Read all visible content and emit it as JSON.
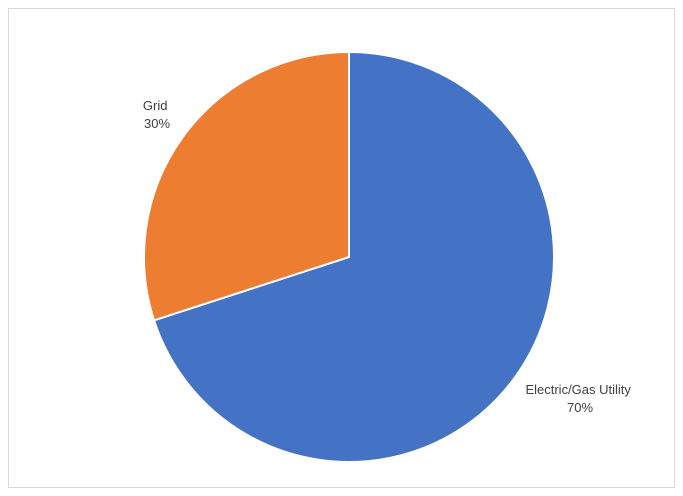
{
  "chart_data": {
    "type": "pie",
    "title": "",
    "slices": [
      {
        "label": "Electric/Gas Utility",
        "value": 70,
        "percent_label": "70%",
        "color": "#4472C4"
      },
      {
        "label": "Grid",
        "value": 30,
        "percent_label": "30%",
        "color": "#ED7D31"
      }
    ],
    "start_angle_deg": 0,
    "direction": "clockwise",
    "legend": "none",
    "slice_border_color": "#ffffff"
  }
}
